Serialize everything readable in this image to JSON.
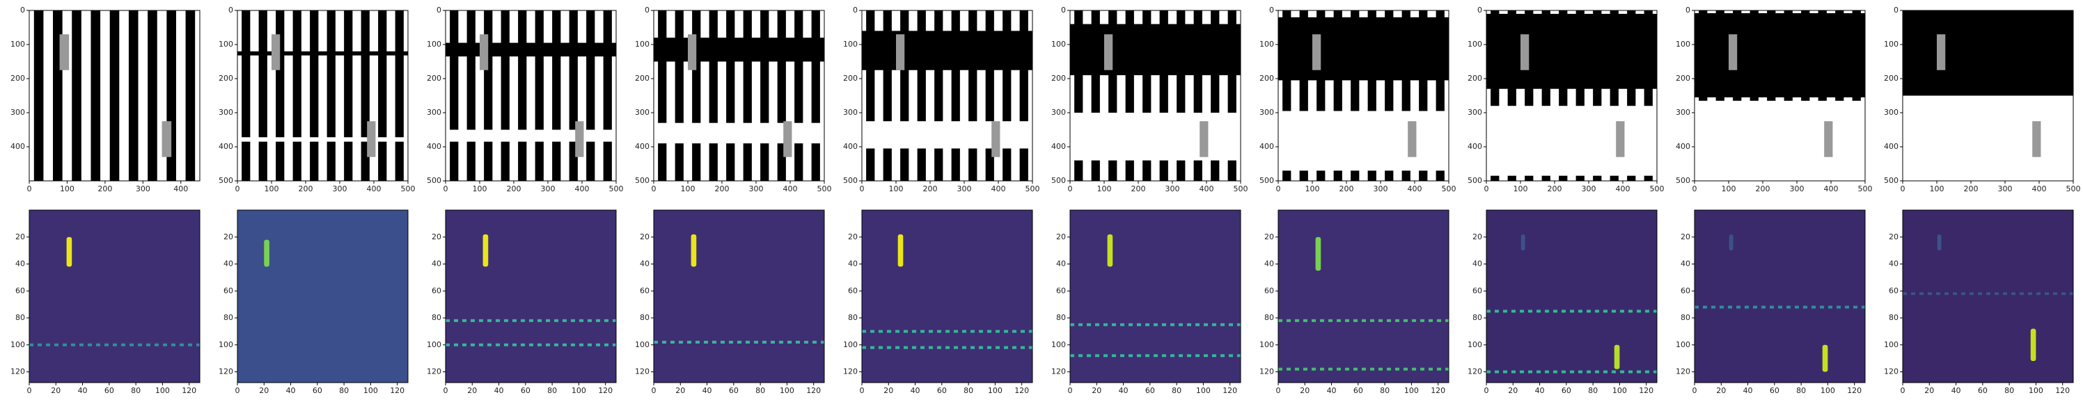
{
  "chart_data": [
    {
      "type": "image",
      "cmap": "gray",
      "xlim": [
        0,
        450
      ],
      "ylim": [
        500,
        0
      ],
      "xticks": [
        0,
        100,
        200,
        300,
        400
      ],
      "yticks": [
        0,
        100,
        200,
        300,
        400
      ],
      "stripe_period": 50,
      "black_band": null,
      "white_band": null,
      "gray_bars": [
        [
          80,
          105,
          70,
          175
        ],
        [
          350,
          375,
          325,
          430
        ]
      ]
    },
    {
      "type": "image",
      "cmap": "gray",
      "xlim": [
        0,
        500
      ],
      "ylim": [
        500,
        0
      ],
      "xticks": [
        0,
        100,
        200,
        300,
        400,
        500
      ],
      "yticks": [
        0,
        100,
        200,
        300,
        400,
        500
      ],
      "stripe_period": 50,
      "black_band": [
        120,
        132
      ],
      "white_band": [
        372,
        385
      ],
      "gray_bars": [
        [
          100,
          125,
          70,
          175
        ],
        [
          380,
          405,
          325,
          430
        ]
      ]
    },
    {
      "type": "image",
      "cmap": "gray",
      "xlim": [
        0,
        500
      ],
      "ylim": [
        500,
        0
      ],
      "xticks": [
        0,
        100,
        200,
        300,
        400,
        500
      ],
      "yticks": [
        0,
        100,
        200,
        300,
        400,
        500
      ],
      "stripe_period": 50,
      "black_band": [
        95,
        135
      ],
      "white_band": [
        350,
        385
      ],
      "gray_bars": [
        [
          100,
          125,
          70,
          175
        ],
        [
          380,
          405,
          325,
          430
        ]
      ]
    },
    {
      "type": "image",
      "cmap": "gray",
      "xlim": [
        0,
        500
      ],
      "ylim": [
        500,
        0
      ],
      "xticks": [
        0,
        100,
        200,
        300,
        400,
        500
      ],
      "yticks": [
        0,
        100,
        200,
        300,
        400,
        500
      ],
      "stripe_period": 50,
      "black_band": [
        80,
        150
      ],
      "white_band": [
        330,
        390
      ],
      "gray_bars": [
        [
          100,
          125,
          70,
          175
        ],
        [
          380,
          405,
          325,
          430
        ]
      ]
    },
    {
      "type": "image",
      "cmap": "gray",
      "xlim": [
        0,
        500
      ],
      "ylim": [
        500,
        0
      ],
      "xticks": [
        0,
        100,
        200,
        300,
        400,
        500
      ],
      "yticks": [
        0,
        100,
        200,
        300,
        400,
        500
      ],
      "stripe_period": 50,
      "black_band": [
        60,
        175
      ],
      "white_band": [
        325,
        405
      ],
      "gray_bars": [
        [
          100,
          125,
          70,
          175
        ],
        [
          380,
          405,
          325,
          430
        ]
      ]
    },
    {
      "type": "image",
      "cmap": "gray",
      "xlim": [
        0,
        500
      ],
      "ylim": [
        500,
        0
      ],
      "xticks": [
        0,
        100,
        200,
        300,
        400,
        500
      ],
      "yticks": [
        0,
        100,
        200,
        300,
        400,
        500
      ],
      "stripe_period": 50,
      "black_band": [
        40,
        190
      ],
      "white_band": [
        300,
        440
      ],
      "gray_bars": [
        [
          100,
          125,
          70,
          175
        ],
        [
          380,
          405,
          325,
          430
        ]
      ]
    },
    {
      "type": "image",
      "cmap": "gray",
      "xlim": [
        0,
        500
      ],
      "ylim": [
        500,
        0
      ],
      "xticks": [
        0,
        100,
        200,
        300,
        400,
        500
      ],
      "yticks": [
        0,
        100,
        200,
        300,
        400,
        500
      ],
      "stripe_period": 50,
      "black_band": [
        20,
        205
      ],
      "white_band": [
        295,
        470
      ],
      "gray_bars": [
        [
          100,
          125,
          70,
          175
        ],
        [
          380,
          405,
          325,
          430
        ]
      ]
    },
    {
      "type": "image",
      "cmap": "gray",
      "xlim": [
        0,
        500
      ],
      "ylim": [
        500,
        0
      ],
      "xticks": [
        0,
        100,
        200,
        300,
        400,
        500
      ],
      "yticks": [
        0,
        100,
        200,
        300,
        400,
        500
      ],
      "stripe_period": 50,
      "black_band": [
        10,
        230
      ],
      "white_band": [
        280,
        485
      ],
      "gray_bars": [
        [
          100,
          125,
          70,
          175
        ],
        [
          380,
          405,
          325,
          430
        ]
      ]
    },
    {
      "type": "image",
      "cmap": "gray",
      "xlim": [
        0,
        500
      ],
      "ylim": [
        500,
        0
      ],
      "xticks": [
        0,
        100,
        200,
        300,
        400,
        500
      ],
      "yticks": [
        0,
        100,
        200,
        300,
        400,
        500
      ],
      "stripe_period": 50,
      "black_band": [
        8,
        255
      ],
      "white_band": [
        265,
        500
      ],
      "gray_bars": [
        [
          100,
          125,
          70,
          175
        ],
        [
          380,
          405,
          325,
          430
        ]
      ]
    },
    {
      "type": "image",
      "cmap": "gray",
      "xlim": [
        0,
        500
      ],
      "ylim": [
        500,
        0
      ],
      "xticks": [
        0,
        100,
        200,
        300,
        400,
        500
      ],
      "yticks": [
        0,
        100,
        200,
        300,
        400,
        500
      ],
      "stripe_period": 50,
      "black_band": [
        0,
        250
      ],
      "white_band": [
        250,
        500
      ],
      "gray_bars": [
        [
          100,
          125,
          70,
          175
        ],
        [
          380,
          405,
          325,
          430
        ]
      ]
    },
    {
      "type": "heatmap",
      "background": "#3e2f73",
      "xlim": [
        0,
        128
      ],
      "ylim": [
        128,
        0
      ],
      "xticks": [
        0,
        20,
        40,
        60,
        80,
        100,
        120
      ],
      "yticks": [
        20,
        40,
        60,
        80,
        100,
        120
      ],
      "row_lines": [
        100
      ],
      "line_color": "#2f8f9a",
      "hotspots": [
        [
          28,
          32,
          20,
          42,
          "#e9e51a"
        ]
      ]
    },
    {
      "type": "heatmap",
      "background": "#3a4f8c",
      "xlim": [
        0,
        128
      ],
      "ylim": [
        128,
        0
      ],
      "xticks": [
        0,
        20,
        40,
        60,
        80,
        100,
        120
      ],
      "yticks": [
        20,
        40,
        60,
        80,
        100,
        120
      ],
      "row_lines": [],
      "line_color": "#2f8f9a",
      "hotspots": [
        [
          20,
          24,
          22,
          42,
          "#7ad151"
        ]
      ]
    },
    {
      "type": "heatmap",
      "background": "#3e2f73",
      "xlim": [
        0,
        128
      ],
      "ylim": [
        128,
        0
      ],
      "xticks": [
        0,
        20,
        40,
        60,
        80,
        100,
        120
      ],
      "yticks": [
        20,
        40,
        60,
        80,
        100,
        120
      ],
      "row_lines": [
        82,
        100
      ],
      "line_color": "#35b79a",
      "hotspots": [
        [
          28,
          32,
          18,
          42,
          "#e9e51a"
        ]
      ]
    },
    {
      "type": "heatmap",
      "background": "#3e2f73",
      "xlim": [
        0,
        128
      ],
      "ylim": [
        128,
        0
      ],
      "xticks": [
        0,
        20,
        40,
        60,
        80,
        100,
        120
      ],
      "yticks": [
        20,
        40,
        60,
        80,
        100,
        120
      ],
      "row_lines": [
        98
      ],
      "line_color": "#35b79a",
      "hotspots": [
        [
          28,
          32,
          18,
          42,
          "#e9e51a"
        ]
      ]
    },
    {
      "type": "heatmap",
      "background": "#3e2f73",
      "xlim": [
        0,
        128
      ],
      "ylim": [
        128,
        0
      ],
      "xticks": [
        0,
        20,
        40,
        60,
        80,
        100,
        120
      ],
      "yticks": [
        20,
        40,
        60,
        80,
        100,
        120
      ],
      "row_lines": [
        90,
        102
      ],
      "line_color": "#35b79a",
      "hotspots": [
        [
          27,
          31,
          18,
          42,
          "#e9e51a"
        ]
      ]
    },
    {
      "type": "heatmap",
      "background": "#3e2f73",
      "xlim": [
        0,
        128
      ],
      "ylim": [
        128,
        0
      ],
      "xticks": [
        0,
        20,
        40,
        60,
        80,
        100,
        120
      ],
      "yticks": [
        20,
        40,
        60,
        80,
        100,
        120
      ],
      "row_lines": [
        85,
        108
      ],
      "line_color": "#35b79a",
      "hotspots": [
        [
          28,
          32,
          18,
          42,
          "#c5e021"
        ]
      ]
    },
    {
      "type": "heatmap",
      "background": "#3e2f73",
      "xlim": [
        0,
        128
      ],
      "ylim": [
        128,
        0
      ],
      "xticks": [
        0,
        20,
        40,
        60,
        80,
        100,
        120
      ],
      "yticks": [
        20,
        40,
        60,
        80,
        100,
        120
      ],
      "row_lines": [
        82,
        118
      ],
      "line_color": "#44bf70",
      "hotspots": [
        [
          28,
          32,
          20,
          45,
          "#7ad151"
        ]
      ]
    },
    {
      "type": "heatmap",
      "background": "#3b2a6b",
      "xlim": [
        0,
        128
      ],
      "ylim": [
        128,
        0
      ],
      "xticks": [
        0,
        20,
        40,
        60,
        80,
        100,
        120
      ],
      "yticks": [
        20,
        40,
        60,
        80,
        100,
        120
      ],
      "row_lines": [
        75,
        120
      ],
      "line_color": "#35b79a",
      "hotspots": [
        [
          96,
          100,
          100,
          118,
          "#b5de2b"
        ],
        [
          26,
          29,
          18,
          30,
          "#3b528b"
        ]
      ]
    },
    {
      "type": "heatmap",
      "background": "#3b2a6b",
      "xlim": [
        0,
        128
      ],
      "ylim": [
        128,
        0
      ],
      "xticks": [
        0,
        20,
        40,
        60,
        80,
        100,
        120
      ],
      "yticks": [
        20,
        40,
        60,
        80,
        100,
        120
      ],
      "row_lines": [
        72
      ],
      "line_color": "#2f8f9a",
      "hotspots": [
        [
          96,
          100,
          100,
          120,
          "#c5e021"
        ],
        [
          26,
          29,
          18,
          30,
          "#3b528b"
        ]
      ]
    },
    {
      "type": "heatmap",
      "background": "#3a2868",
      "xlim": [
        0,
        128
      ],
      "ylim": [
        128,
        0
      ],
      "xticks": [
        0,
        20,
        40,
        60,
        80,
        100,
        120
      ],
      "yticks": [
        20,
        40,
        60,
        80,
        100,
        120
      ],
      "row_lines": [
        62
      ],
      "line_color": "#3b528b",
      "hotspots": [
        [
          96,
          100,
          88,
          112,
          "#c5e021"
        ],
        [
          26,
          29,
          18,
          30,
          "#3b528b"
        ]
      ]
    }
  ]
}
